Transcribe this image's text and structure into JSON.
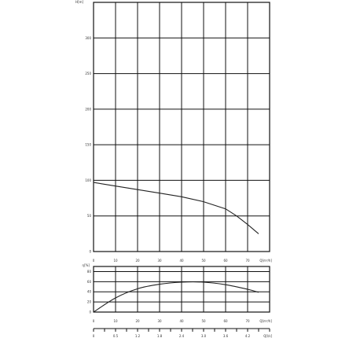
{
  "chart_data": [
    {
      "type": "line",
      "title": "",
      "ylabel": "H[m]",
      "xlabel": "Q[m³/h]",
      "xlim": [
        0,
        80
      ],
      "ylim": [
        0,
        350
      ],
      "x_ticks": [
        "0",
        "10",
        "20",
        "30",
        "40",
        "50",
        "60",
        "70"
      ],
      "y_ticks": [
        "0",
        "50",
        "100",
        "150",
        "200",
        "250",
        "300"
      ],
      "grid": true,
      "series": [
        {
          "x": [
            0,
            10,
            20,
            30,
            40,
            50,
            60,
            65,
            70,
            75
          ],
          "values": [
            97,
            92,
            87,
            82,
            77,
            70,
            60,
            50,
            38,
            25
          ]
        }
      ]
    },
    {
      "type": "line",
      "title": "",
      "ylabel": "η[%]",
      "xlabel": "Q[m³/h]",
      "xlim": [
        0,
        80
      ],
      "ylim": [
        0,
        90
      ],
      "x_ticks": [
        "0",
        "10",
        "20",
        "30",
        "40",
        "50",
        "60",
        "70"
      ],
      "x2_ticks": [
        "0",
        "0.5",
        "1.2",
        "1.8",
        "2.4",
        "3.0",
        "3.6",
        "4.2"
      ],
      "x2label": "Q[l/s]",
      "y_ticks": [
        "0",
        "20",
        "40",
        "60",
        "80"
      ],
      "grid": true,
      "series": [
        {
          "x": [
            0,
            10,
            20,
            30,
            40,
            50,
            60,
            70,
            75
          ],
          "values": [
            0,
            28,
            46,
            55,
            59,
            59,
            54,
            45,
            39
          ]
        }
      ]
    }
  ]
}
